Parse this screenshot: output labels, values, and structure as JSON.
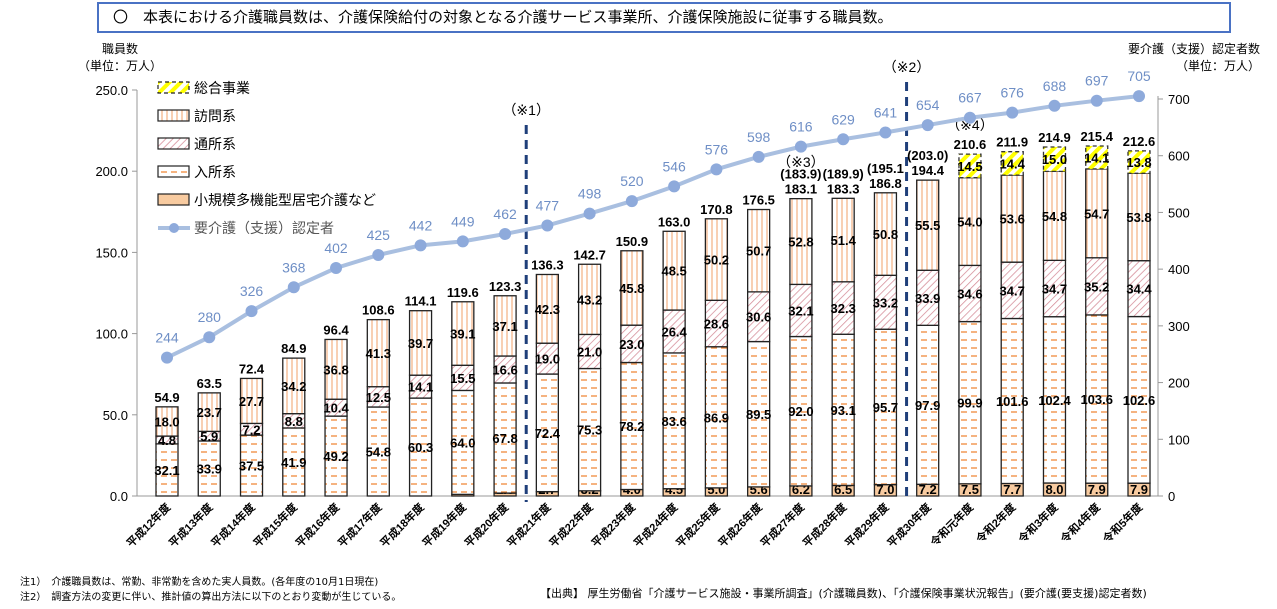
{
  "title": "〇　本表における介護職員数は、介護保険給付の対象となる介護サービス事業所、介護保険施設に従事する職員数。",
  "left_axis_title": [
    "職員数",
    "（単位：万人）"
  ],
  "right_axis_title": [
    "要介護（支援）認定者数",
    "（単位：万人）"
  ],
  "notes": [
    "注1）　介護職員数は、常勤、非常勤を含めた実人員数。(各年度の10月1日現在)",
    "注2）　調査方法の変更に伴い、推計値の算出方法に以下のとおり変動が生じている。"
  ],
  "source": "【出典】 厚生労働省「介護サービス施設・事業所調査」(介護職員数)、「介護保険事業状況報告」(要介護(要支援)認定者数)",
  "chart_data": {
    "type": "bar",
    "stacked": true,
    "categories": [
      "平成12年度",
      "平成13年度",
      "平成14年度",
      "平成15年度",
      "平成16年度",
      "平成17年度",
      "平成18年度",
      "平成19年度",
      "平成20年度",
      "平成21年度",
      "平成22年度",
      "平成23年度",
      "平成24年度",
      "平成25年度",
      "平成26年度",
      "平成27年度",
      "平成28年度",
      "平成29年度",
      "平成30年度",
      "令和元年度",
      "令和2年度",
      "令和3年度",
      "令和4年度",
      "令和5年度"
    ],
    "series": [
      {
        "name": "小規模多機能型居宅介護など",
        "color": "#f8cba0",
        "values": [
          null,
          null,
          null,
          null,
          null,
          null,
          null,
          1.0,
          1.8,
          2.7,
          3.2,
          4.0,
          4.5,
          5.0,
          5.6,
          6.2,
          6.5,
          7.0,
          7.2,
          7.5,
          7.7,
          8.0,
          7.9,
          7.9
        ]
      },
      {
        "name": "入所系",
        "color": "#f08a3c",
        "values": [
          32.1,
          33.9,
          37.5,
          41.9,
          49.2,
          54.8,
          60.3,
          64.0,
          67.8,
          72.4,
          75.3,
          78.2,
          83.6,
          86.9,
          89.5,
          92.0,
          93.1,
          95.7,
          97.9,
          99.9,
          101.6,
          102.4,
          103.6,
          102.6
        ]
      },
      {
        "name": "通所系",
        "color": "#d48a96",
        "values": [
          4.8,
          5.9,
          7.2,
          8.8,
          10.4,
          12.5,
          14.1,
          15.5,
          16.6,
          19.0,
          21.0,
          23.0,
          26.4,
          28.6,
          30.6,
          32.1,
          32.3,
          33.2,
          33.9,
          34.6,
          34.7,
          34.7,
          35.2,
          34.4
        ]
      },
      {
        "name": "訪問系",
        "color": "#f4b183",
        "values": [
          18.0,
          23.7,
          27.7,
          34.2,
          36.8,
          41.3,
          39.7,
          39.1,
          37.1,
          42.3,
          43.2,
          45.8,
          48.5,
          50.2,
          50.7,
          52.8,
          51.4,
          50.8,
          55.5,
          54.0,
          53.6,
          54.8,
          54.7,
          53.8
        ]
      },
      {
        "name": "総合事業",
        "color": "#ffff00",
        "values": [
          null,
          null,
          null,
          null,
          null,
          null,
          null,
          null,
          null,
          null,
          null,
          null,
          null,
          null,
          null,
          null,
          null,
          null,
          null,
          14.5,
          14.4,
          15.0,
          14.1,
          13.8
        ]
      }
    ],
    "totals": [
      "54.9",
      "63.5",
      "72.4",
      "84.9",
      "96.4",
      "108.6",
      "114.1",
      "119.6",
      "123.3",
      "136.3",
      "142.7",
      "150.9",
      "163.0",
      "170.8",
      "176.5",
      "183.1",
      "183.3",
      "186.8",
      "194.4",
      "210.6",
      "211.9",
      "214.9",
      "215.4",
      "212.6"
    ],
    "alt_totals": [
      null,
      null,
      null,
      null,
      null,
      null,
      null,
      null,
      null,
      null,
      null,
      null,
      null,
      null,
      null,
      "(183.9)",
      "(189.9)",
      "(195.1",
      "(203.0)",
      null,
      null,
      null,
      null,
      null
    ],
    "line": {
      "name": "要介護（支援）認定者",
      "axis": "right",
      "color": "#a9bfe0",
      "values": [
        244,
        280,
        326,
        368,
        402,
        425,
        442,
        449,
        462,
        477,
        498,
        520,
        546,
        576,
        598,
        616,
        629,
        641,
        654,
        667,
        676,
        688,
        697,
        705
      ]
    },
    "left_axis": {
      "ylim": [
        0,
        250
      ],
      "ticks": [
        "0.0",
        "50.0",
        "100.0",
        "150.0",
        "200.0",
        "250.0"
      ]
    },
    "right_axis": {
      "ylim": [
        0,
        700
      ],
      "ticks": [
        "0",
        "100",
        "200",
        "300",
        "400",
        "500",
        "600",
        "700"
      ]
    },
    "annotations": [
      {
        "text": "（※1）",
        "between": [
          "平成20年度",
          "平成21年度"
        ],
        "divider": true
      },
      {
        "text": "（※2）",
        "between": [
          "平成29年度",
          "平成30年度"
        ],
        "divider": true
      },
      {
        "text": "（※3）",
        "at": "平成27年度"
      },
      {
        "text": "（※4）",
        "at": "令和元年度"
      }
    ],
    "legend_position": "top-left"
  }
}
